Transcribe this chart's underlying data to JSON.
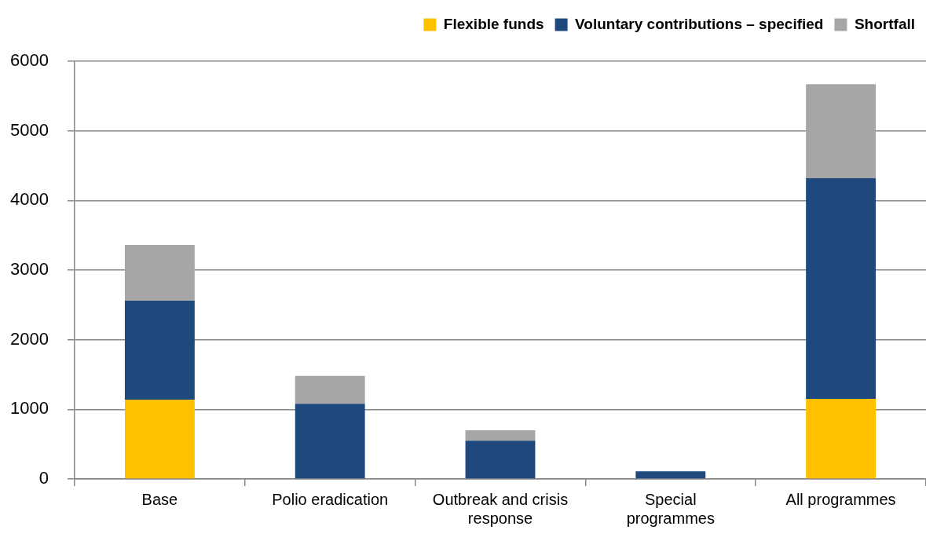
{
  "chart_data": {
    "type": "bar",
    "stacked": true,
    "categories": [
      "Base",
      "Polio eradication",
      "Outbreak and crisis response",
      "Special programmes",
      "All programmes"
    ],
    "series": [
      {
        "name": "Flexible funds",
        "color": "#ffc000",
        "values": [
          1140,
          null,
          null,
          null,
          1150
        ]
      },
      {
        "name": "Voluntary contributions – specified",
        "color": "#1f497d",
        "values": [
          1420,
          1080,
          550,
          110,
          3170
        ]
      },
      {
        "name": "Shortfall",
        "color": "#a6a6a6",
        "values": [
          800,
          400,
          150,
          null,
          1350
        ]
      }
    ],
    "ylim": [
      0,
      6000
    ],
    "yticks": [
      0,
      1000,
      2000,
      3000,
      4000,
      5000,
      6000
    ],
    "grid": "y",
    "legend": "top right"
  }
}
